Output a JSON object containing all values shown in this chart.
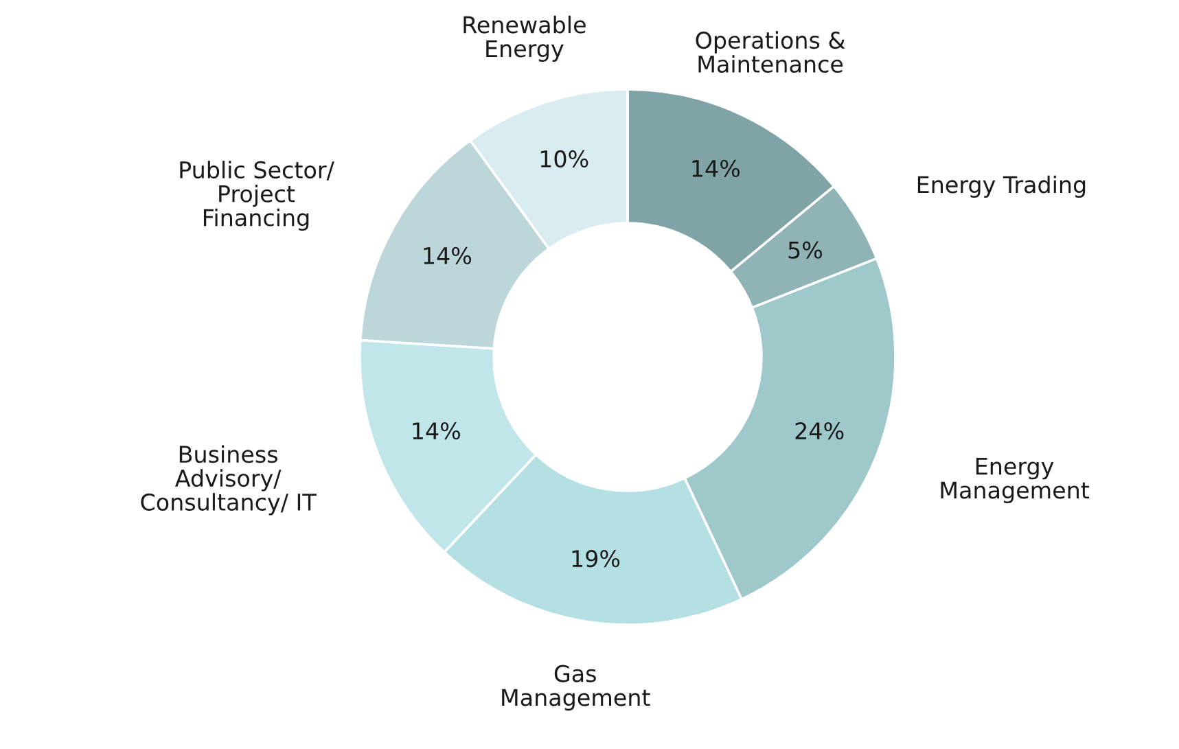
{
  "chart_data": {
    "type": "donut",
    "categories": [
      "Operations &\nMaintenance",
      "Energy Trading",
      "Energy\nManagement",
      "Gas\nManagement",
      "Business\nAdvisory/\nConsultancy/ IT",
      "Public Sector/\nProject\nFinancing",
      "Renewable\nEnergy"
    ],
    "values": [
      14,
      5,
      24,
      19,
      14,
      14,
      10
    ],
    "value_labels": [
      "14%",
      "5%",
      "24%",
      "19%",
      "14%",
      "14%",
      "10%"
    ],
    "colors": [
      "#80a4a6",
      "#90b3b5",
      "#9fc8cb",
      "#b4e0e4",
      "#c0e6ea",
      "#bcd6da",
      "#d9edf0"
    ]
  }
}
